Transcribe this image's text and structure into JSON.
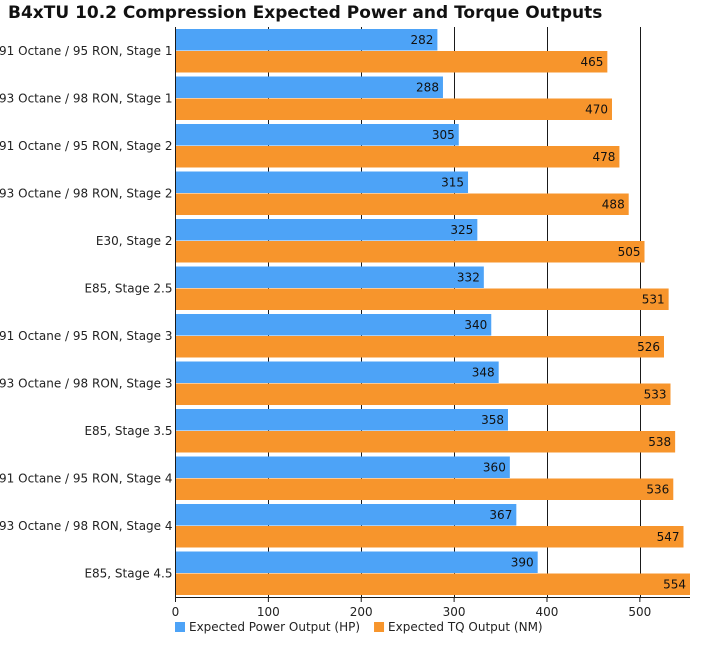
{
  "chart_data": {
    "type": "bar",
    "orientation": "horizontal",
    "title": "B4xTU 10.2 Compression Expected Power and Torque Outputs",
    "categories": [
      "91 Octane / 95 RON, Stage 1",
      "93 Octane / 98 RON, Stage 1",
      "91 Octane / 95 RON, Stage 2",
      "93 Octane / 98 RON, Stage 2",
      "E30, Stage 2",
      "E85, Stage 2.5",
      "91 Octane / 95 RON, Stage 3",
      "93 Octane / 98 RON, Stage 3",
      "E85, Stage 3.5",
      "91 Octane / 95 RON, Stage 4",
      "93 Octane / 98 RON, Stage 4",
      "E85, Stage 4.5"
    ],
    "series": [
      {
        "name": "Expected Power Output (HP)",
        "color": "#4da3f7",
        "values": [
          282,
          288,
          305,
          315,
          325,
          332,
          340,
          348,
          358,
          360,
          367,
          390
        ]
      },
      {
        "name": "Expected TQ Output (NM)",
        "color": "#f7952c",
        "values": [
          465,
          470,
          478,
          488,
          505,
          531,
          526,
          533,
          538,
          536,
          547,
          554
        ]
      }
    ],
    "xlim": [
      0,
      554
    ],
    "xticks": [
      0,
      100,
      200,
      300,
      400,
      500
    ],
    "grid": true,
    "legend_position": "bottom",
    "data_labels": true
  }
}
